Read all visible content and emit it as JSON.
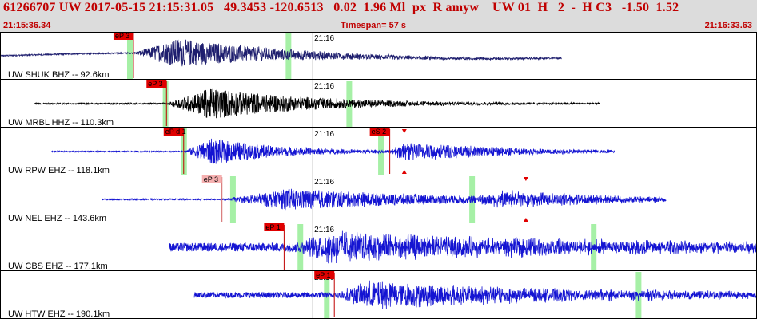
{
  "header": {
    "title": "61266707 UW 2017-05-15 21:15:31.05   49.3453 -120.6513   0.02  1.96 Ml  px  R amyw    UW 01  H   2  -  H C3   -1.50  1.52",
    "start_time": "21:15:36.34",
    "timespan": "Timespan=  57 s",
    "end_time": "21:16:33.63"
  },
  "colors": {
    "header_bg": "#dcdcdc",
    "header_text": "#c00000",
    "pick_flag": "#e00000",
    "pick_flag_light": "#f5b0b0",
    "green_marker": "#a6f0a6",
    "divider": "#000000"
  },
  "chart_data": {
    "type": "seismogram",
    "time_range_s": [
      0,
      57.29
    ],
    "minute_label": "21:16",
    "minute_mark_s": 23.66,
    "channels": [
      {
        "label": "UW SHUK BHZ -- 92.6km",
        "color": "#1e1e6e",
        "data_start_s": 0.0,
        "data_end_s": 42.5,
        "green_markers_s": [
          9.8,
          21.8
        ],
        "picks": [
          {
            "label": "eP 3",
            "time_s": 10.1,
            "style": "dark"
          }
        ],
        "events": [
          {
            "start_s": 10.0,
            "peak_s": 13.5,
            "amp": 0.6,
            "decay": 0.12,
            "freq": 3.0
          }
        ],
        "noise_amp": 0.03,
        "base_freq": 0.02
      },
      {
        "label": "UW MRBL HHZ -- 110.3km",
        "color": "#000000",
        "data_start_s": 2.6,
        "data_end_s": 45.4,
        "green_markers_s": [
          12.5,
          26.4
        ],
        "picks": [
          {
            "label": "eP 3",
            "time_s": 12.6,
            "style": "dark"
          }
        ],
        "events": [
          {
            "start_s": 12.6,
            "peak_s": 16.0,
            "amp": 0.68,
            "decay": 0.13,
            "freq": 4.0
          }
        ],
        "noise_amp": 0.03,
        "base_freq": 0
      },
      {
        "label": "UW RPW EHZ -- 118.1km",
        "color": "#1414d2",
        "data_start_s": 3.9,
        "data_end_s": 46.5,
        "green_markers_s": [
          13.9,
          28.8
        ],
        "picks": [
          {
            "label": "eP d 1",
            "time_s": 13.9,
            "style": "dark"
          },
          {
            "label": "eS 2",
            "time_s": 29.5,
            "style": "dark"
          }
        ],
        "triangles_s": [
          30.6
        ],
        "events": [
          {
            "start_s": 13.9,
            "peak_s": 16.0,
            "amp": 0.55,
            "decay": 0.18,
            "freq": 5.0
          },
          {
            "start_s": 29.5,
            "peak_s": 30.5,
            "amp": 0.4,
            "decay": 0.12,
            "freq": 3.0
          }
        ],
        "noise_amp": 0.025,
        "base_freq": 0
      },
      {
        "label": "UW NEL EHZ -- 143.6km",
        "color": "#1414d2",
        "data_start_s": 7.7,
        "data_end_s": 50.4,
        "green_markers_s": [
          17.6,
          35.7
        ],
        "picks": [
          {
            "label": "eP 3",
            "time_s": 16.8,
            "style": "light"
          }
        ],
        "triangles_s": [
          39.8
        ],
        "events": [
          {
            "start_s": 16.9,
            "peak_s": 22.0,
            "amp": 0.45,
            "decay": 0.08,
            "freq": 5.0
          },
          {
            "start_s": 35.5,
            "peak_s": 38.0,
            "amp": 0.3,
            "decay": 0.1,
            "freq": 5.0
          }
        ],
        "noise_amp": 0.03,
        "base_freq": 0
      },
      {
        "label": "UW CBS EHZ -- 177.1km",
        "color": "#1414d2",
        "data_start_s": 12.8,
        "data_end_s": 57.29,
        "green_markers_s": [
          22.7,
          44.9
        ],
        "picks": [
          {
            "label": "eP 1",
            "time_s": 21.5,
            "style": "dark"
          }
        ],
        "events": [
          {
            "start_s": 22.0,
            "peak_s": 25.0,
            "amp": 0.55,
            "decay": 0.05,
            "freq": 6.0
          }
        ],
        "noise_amp": 0.18,
        "base_freq": 0
      },
      {
        "label": "UW HTW EHZ -- 190.1km",
        "color": "#1414d2",
        "data_start_s": 14.7,
        "data_end_s": 57.29,
        "green_markers_s": [
          24.7,
          48.3
        ],
        "picks": [
          {
            "label": "eP 1",
            "time_s": 25.3,
            "style": "dark"
          }
        ],
        "events": [
          {
            "start_s": 25.3,
            "peak_s": 28.0,
            "amp": 0.55,
            "decay": 0.07,
            "freq": 5.0
          }
        ],
        "noise_amp": 0.12,
        "base_freq": 0
      }
    ]
  }
}
